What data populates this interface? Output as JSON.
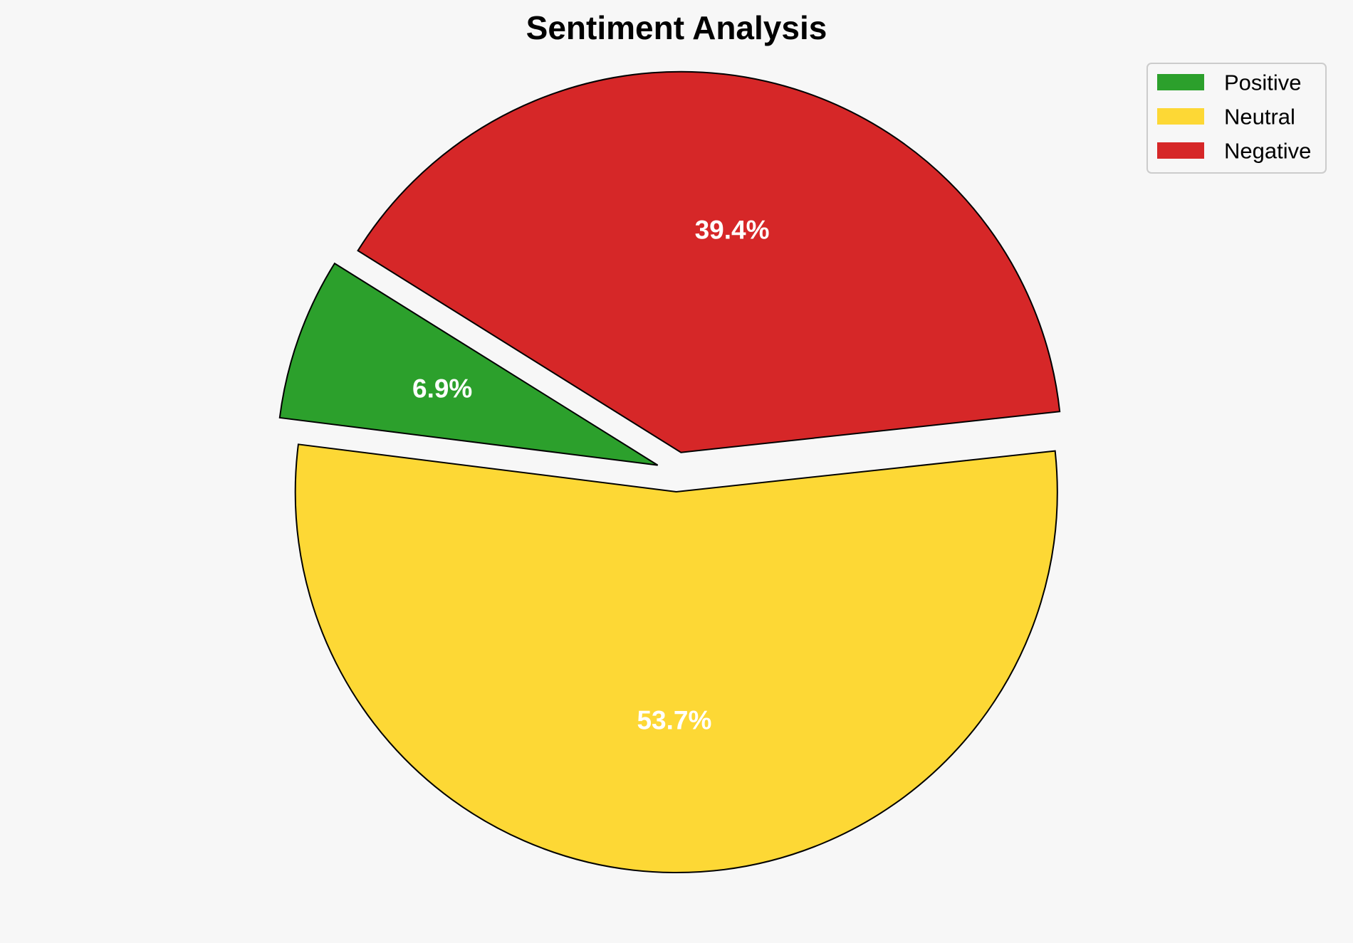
{
  "chart_data": {
    "type": "pie",
    "title": "Sentiment Analysis",
    "slices": [
      {
        "name": "Positive",
        "value": 6.9,
        "label": "6.9%",
        "color": "#2ca02c",
        "exploded": true
      },
      {
        "name": "Neutral",
        "value": 53.7,
        "label": "53.7%",
        "color": "#fdd835",
        "exploded": true
      },
      {
        "name": "Negative",
        "value": 39.4,
        "label": "39.4%",
        "color": "#d62728",
        "exploded": true
      }
    ],
    "start_angle_deg": 148,
    "direction": "counterclockwise",
    "legend": {
      "placement": "top-right",
      "entries": [
        "Positive",
        "Neutral",
        "Negative"
      ]
    },
    "edge_color": "#000000",
    "label_color": "#ffffff"
  }
}
